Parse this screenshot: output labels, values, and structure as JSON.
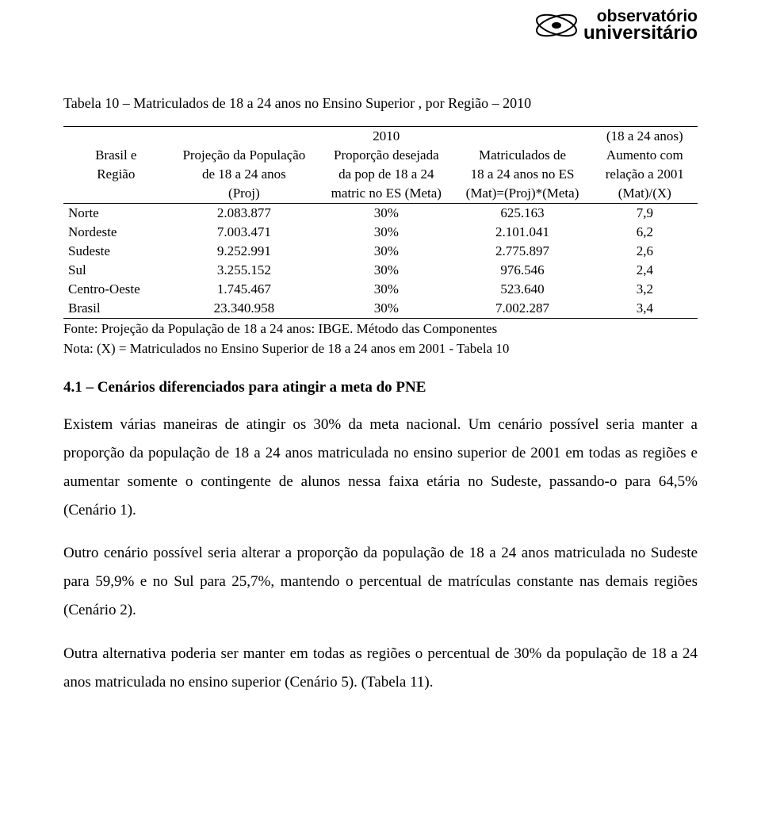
{
  "logo": {
    "line1": "observatório",
    "line2": "universitário"
  },
  "table": {
    "title": "Tabela 10 – Matriculados de 18 a 24 anos no Ensino Superior , por Região – 2010",
    "header": {
      "r1c2": "2010",
      "r1c4": "(18 a 24 anos)",
      "r2c0": "Brasil e",
      "r2c1": "Projeção da População",
      "r2c2": "Proporção desejada",
      "r2c3": "Matriculados de",
      "r2c4": "Aumento com",
      "r3c0": "Região",
      "r3c1": "de 18 a 24 anos",
      "r3c2": "da pop de 18 a 24",
      "r3c3": "18 a 24 anos no ES",
      "r3c4": "relação a 2001",
      "r4c1": "(Proj)",
      "r4c2": "matric no ES (Meta)",
      "r4c3": "(Mat)=(Proj)*(Meta)",
      "r4c4": "(Mat)/(X)"
    },
    "rows": [
      {
        "region": "Norte",
        "proj": "2.083.877",
        "prop": "30%",
        "mat": "625.163",
        "aug": "7,9",
        "bold": false
      },
      {
        "region": "Nordeste",
        "proj": "7.003.471",
        "prop": "30%",
        "mat": "2.101.041",
        "aug": "6,2",
        "bold": false
      },
      {
        "region": "Sudeste",
        "proj": "9.252.991",
        "prop": "30%",
        "mat": "2.775.897",
        "aug": "2,6",
        "bold": false
      },
      {
        "region": "Sul",
        "proj": "3.255.152",
        "prop": "30%",
        "mat": "976.546",
        "aug": "2,4",
        "bold": false
      },
      {
        "region": "Centro-Oeste",
        "proj": "1.745.467",
        "prop": "30%",
        "mat": "523.640",
        "aug": "3,2",
        "bold": false
      },
      {
        "region": "Brasil",
        "proj": "23.340.958",
        "prop": "30%",
        "mat": "7.002.287",
        "aug": "3,4",
        "bold": true
      }
    ],
    "source": "Fonte: Projeção da População de 18 a 24 anos: IBGE. Método das Componentes",
    "note": "Nota: (X) = Matriculados no Ensino Superior de 18 a 24 anos em 2001 - Tabela 10"
  },
  "section": {
    "heading": "4.1 – Cenários diferenciados para atingir a meta do PNE",
    "p1": "Existem várias maneiras de atingir os 30% da meta nacional. Um cenário possível seria manter a proporção da população de 18 a 24 anos matriculada no ensino superior de 2001 em todas as regiões e aumentar somente o contingente de alunos nessa faixa etária no Sudeste, passando-o para 64,5% (Cenário 1).",
    "p2": "Outro cenário possível seria alterar a proporção da população de 18 a 24 anos matriculada no Sudeste para 59,9% e no Sul para 25,7%, mantendo o percentual de matrículas constante nas demais regiões (Cenário 2).",
    "p3": "Outra alternativa poderia ser manter em todas as regiões o percentual de 30% da população de 18 a 24 anos matriculada no ensino superior (Cenário 5). (Tabela 11)."
  }
}
